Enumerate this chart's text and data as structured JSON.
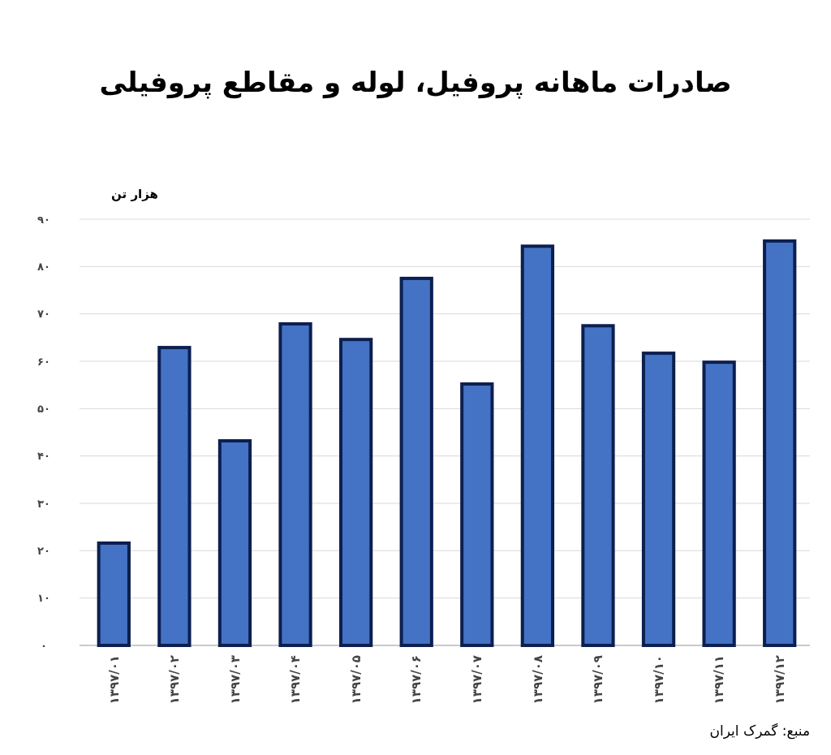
{
  "chart_data": {
    "type": "bar",
    "title": "صادرات ماهانه پروفیل، لوله و مقاطع پروفیلی",
    "ylabel": "هزار تن",
    "categories": [
      "۱۳۹۷/۰۱",
      "۱۳۹۷/۰۲",
      "۱۳۹۷/۰۳",
      "۱۳۹۷/۰۴",
      "۱۳۹۷/۰۵",
      "۱۳۹۷/۰۶",
      "۱۳۹۷/۰۷",
      "۱۳۹۷/۰۸",
      "۱۳۹۷/۰۹",
      "۱۳۹۷/۱۰",
      "۱۳۹۷/۱۱",
      "۱۳۹۷/۱۲"
    ],
    "values": [
      21.6,
      62.9,
      43.2,
      67.9,
      64.6,
      77.5,
      55.2,
      84.3,
      67.5,
      61.7,
      59.8,
      85.4
    ],
    "color": "#4472c4",
    "ylim": [
      0,
      90
    ],
    "yticks": [
      {
        "value": 0,
        "label": "۰"
      },
      {
        "value": 10,
        "label": "۱۰"
      },
      {
        "value": 20,
        "label": "۲۰"
      },
      {
        "value": 30,
        "label": "۳۰"
      },
      {
        "value": 40,
        "label": "۴۰"
      },
      {
        "value": 50,
        "label": "۵۰"
      },
      {
        "value": 60,
        "label": "۶۰"
      },
      {
        "value": 70,
        "label": "۷۰"
      },
      {
        "value": 80,
        "label": "۸۰"
      },
      {
        "value": 90,
        "label": "۹۰"
      }
    ],
    "grid": "y",
    "annotations": [
      "منبع: گمرک ایران"
    ]
  }
}
